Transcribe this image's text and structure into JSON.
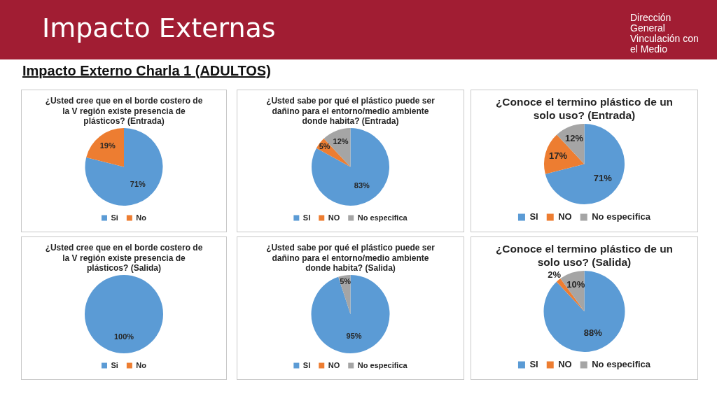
{
  "chart_data": [
    {
      "type": "other",
      "title": "Impacto Externas",
      "subtitle": "Impacto Externo Charla 1 (ADULTOS)",
      "annotations": [
        "Dirección General Vinculación con el Medio"
      ]
    },
    {
      "type": "pie",
      "title": "¿Usted cree que en el borde costero de la V región existe presencia de plásticos? (Entrada)",
      "categories": [
        "Si",
        "No"
      ],
      "values": [
        71,
        19
      ],
      "colors": [
        "#5b9bd5",
        "#ed7d31"
      ],
      "value_labels": [
        "71%",
        "19%"
      ],
      "legend": "bottom"
    },
    {
      "type": "pie",
      "title": "¿Usted sabe por qué el plástico puede ser dañino para el entorno/medio ambiente donde habita? (Entrada)",
      "categories": [
        "SI",
        "NO",
        "No especifica"
      ],
      "values": [
        83,
        5,
        12
      ],
      "colors": [
        "#5b9bd5",
        "#ed7d31",
        "#a5a5a5"
      ],
      "value_labels": [
        "83%",
        "5%",
        "12%"
      ],
      "legend": "bottom"
    },
    {
      "type": "pie",
      "title": "¿Conoce el termino plástico de un solo uso? (Entrada)",
      "categories": [
        "SI",
        "NO",
        "No especifica"
      ],
      "values": [
        71,
        17,
        12
      ],
      "colors": [
        "#5b9bd5",
        "#ed7d31",
        "#a5a5a5"
      ],
      "value_labels": [
        "71%",
        "17%",
        "12%"
      ],
      "legend": "bottom"
    },
    {
      "type": "pie",
      "title": "¿Usted cree que en el borde costero de la V región existe presencia de plásticos? (Salida)",
      "categories": [
        "Si",
        "No"
      ],
      "values": [
        100,
        0
      ],
      "colors": [
        "#5b9bd5",
        "#ed7d31"
      ],
      "value_labels": [
        "100%",
        null
      ],
      "legend": "bottom"
    },
    {
      "type": "pie",
      "title": "¿Usted sabe por qué el plástico puede ser dañino para el entorno/medio ambiente donde habita? (Salida)",
      "categories": [
        "SI",
        "NO",
        "No especifica"
      ],
      "values": [
        95,
        0,
        5
      ],
      "colors": [
        "#5b9bd5",
        "#ed7d31",
        "#a5a5a5"
      ],
      "value_labels": [
        "95%",
        null,
        "5%"
      ],
      "legend": "bottom"
    },
    {
      "type": "pie",
      "title": "¿Conoce el termino plástico de un solo uso? (Salida)",
      "categories": [
        "SI",
        "NO",
        "No especifica"
      ],
      "values": [
        88,
        2,
        10
      ],
      "colors": [
        "#5b9bd5",
        "#ed7d31",
        "#a5a5a5"
      ],
      "value_labels": [
        "88%",
        "2%",
        "10%"
      ],
      "legend": "bottom"
    }
  ]
}
